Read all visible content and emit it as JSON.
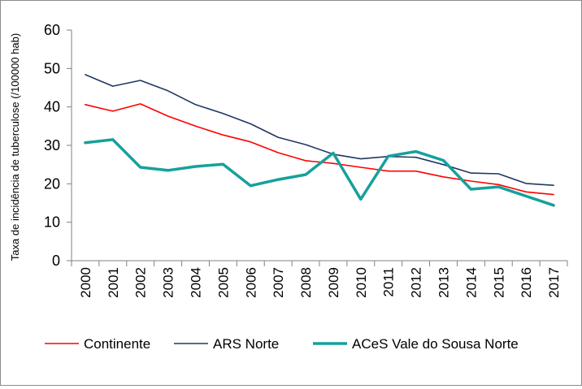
{
  "chart_data": {
    "type": "line",
    "title": "",
    "xlabel": "",
    "ylabel": "Taxa de incidência de tuberculose (/100000 hab)",
    "ylim": [
      0,
      60
    ],
    "yticks": [
      0,
      10,
      20,
      30,
      40,
      50,
      60
    ],
    "categories": [
      "2000",
      "2001",
      "2002",
      "2003",
      "2004",
      "2005",
      "2006",
      "2007",
      "2008",
      "2009",
      "2010",
      "2011",
      "2012",
      "2013",
      "2014",
      "2015",
      "2016",
      "2017"
    ],
    "grid": false,
    "legend_position": "bottom",
    "series": [
      {
        "name": "Continente",
        "color": "#ff0000",
        "stroke_kind": "thin",
        "values": [
          40.6,
          38.9,
          40.8,
          37.6,
          35.0,
          32.7,
          30.9,
          28.1,
          26.0,
          25.3,
          24.3,
          23.3,
          23.3,
          21.8,
          20.7,
          19.8,
          17.9,
          17.2
        ]
      },
      {
        "name": "ARS Norte",
        "color": "#1f3864",
        "stroke_kind": "thin",
        "values": [
          48.4,
          45.4,
          46.9,
          44.2,
          40.6,
          38.3,
          35.6,
          32.1,
          30.2,
          27.7,
          26.5,
          27.1,
          26.9,
          25.0,
          22.8,
          22.6,
          20.1,
          19.6
        ]
      },
      {
        "name": "ACeS Vale do Sousa Norte",
        "color": "#17a09c",
        "stroke_kind": "thick",
        "values": [
          30.7,
          31.5,
          24.3,
          23.5,
          24.5,
          25.1,
          19.5,
          21.1,
          22.4,
          28.0,
          16.0,
          27.2,
          28.4,
          26.1,
          18.6,
          19.2,
          16.8,
          14.4
        ]
      }
    ]
  }
}
